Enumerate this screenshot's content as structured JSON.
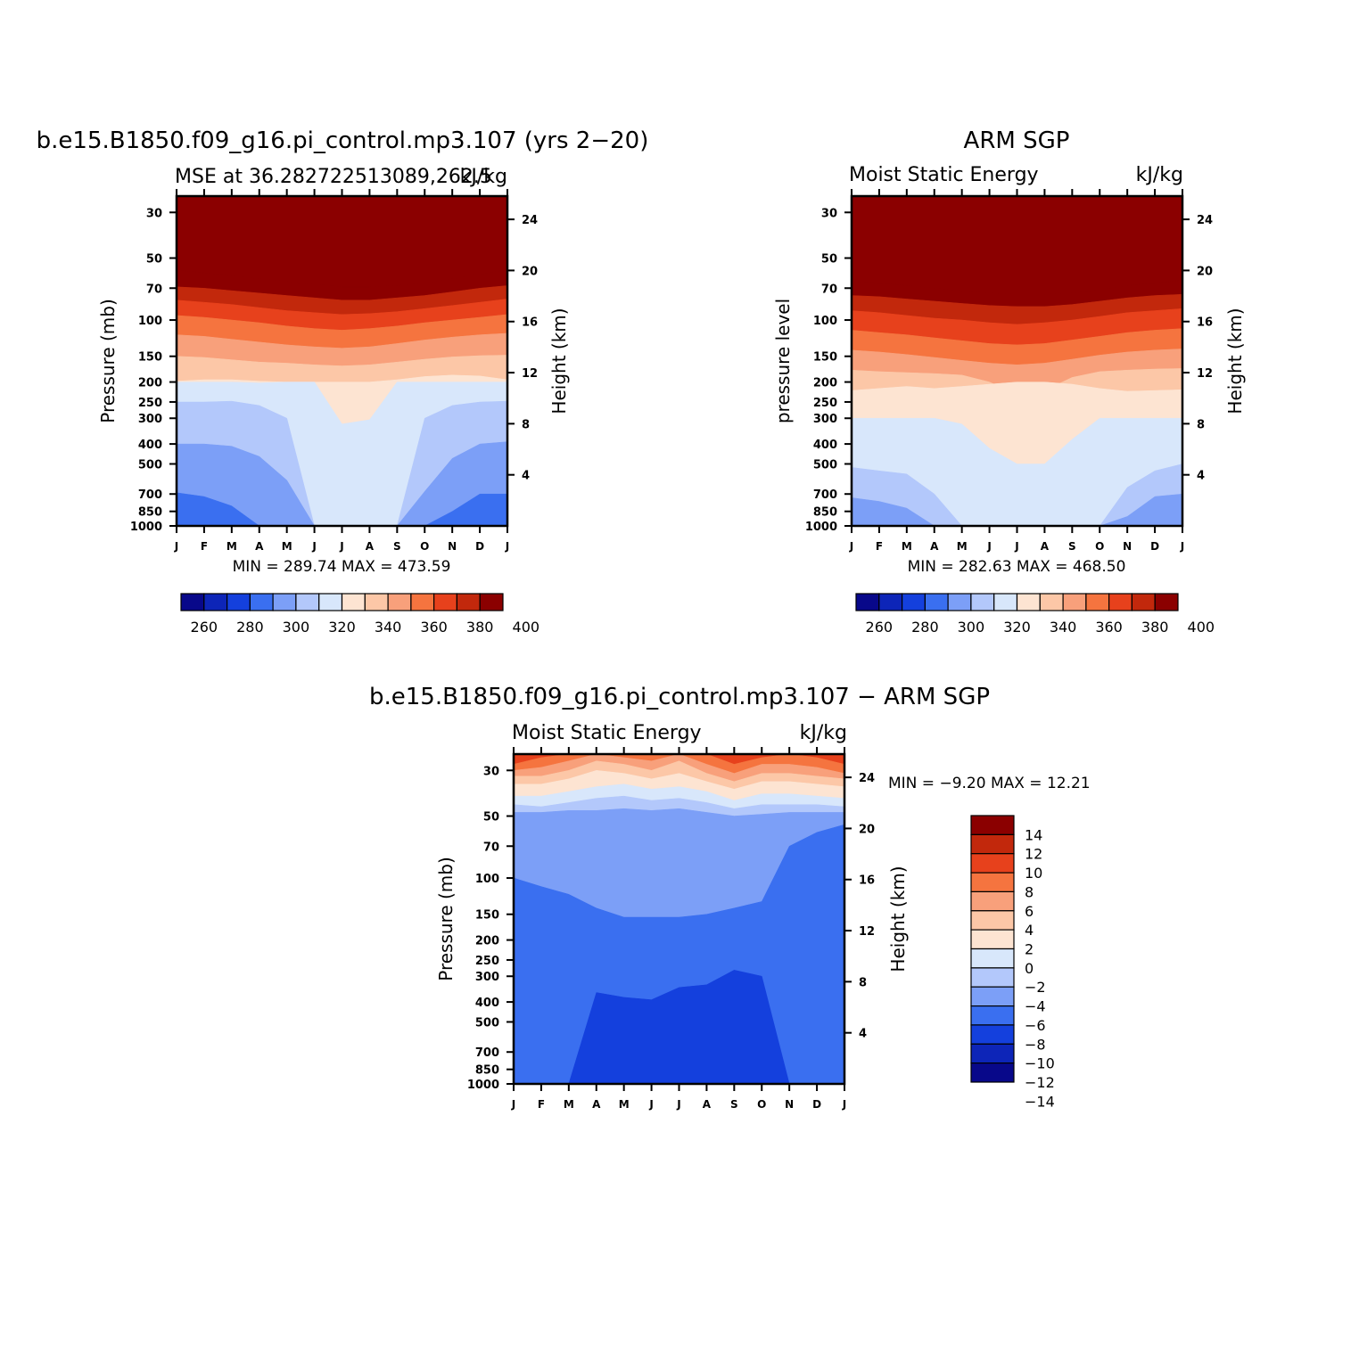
{
  "panels": [
    {
      "id": "model",
      "title": "b.e15.B1850.f09_g16.pi_control.mp3.107 (yrs 2−20)",
      "subtitle_left": "MSE at 36.282722513089,262.5",
      "subtitle_right": "kJ/kg",
      "ylabel_left": "Pressure (mb)",
      "ylabel_right": "Height (km)",
      "minmax": "MIN =  289.74  MAX =  473.59"
    },
    {
      "id": "obs",
      "title": "ARM SGP",
      "subtitle_left": "Moist Static Energy",
      "subtitle_right": "kJ/kg",
      "ylabel_left": "pressure level",
      "ylabel_right": "Height (km)",
      "minmax": "MIN =  282.63  MAX =  468.50"
    },
    {
      "id": "diff",
      "title": "b.e15.B1850.f09_g16.pi_control.mp3.107 − ARM SGP",
      "subtitle_left": "Moist Static Energy",
      "subtitle_right": "kJ/kg",
      "ylabel_left": "Pressure (mb)",
      "ylabel_right": "Height (km)",
      "minmax": "MIN =   −9.20  MAX =   12.21"
    }
  ],
  "colorbars": {
    "abs_labels": [
      "260",
      "280",
      "300",
      "320",
      "340",
      "360",
      "380",
      "400"
    ],
    "abs_colors": [
      "#08088a",
      "#0d25b8",
      "#1440dd",
      "#3a6ff0",
      "#7c9ff7",
      "#b3c8fb",
      "#d8e7fb",
      "#fde4d2",
      "#fcc7a7",
      "#f8a07b",
      "#f5743f",
      "#e7411c",
      "#c2280c",
      "#8b0000"
    ],
    "diff_labels": [
      "14",
      "12",
      "10",
      "8",
      "6",
      "4",
      "2",
      "0",
      "−2",
      "−4",
      "−6",
      "−8",
      "−10",
      "−12",
      "−14"
    ],
    "diff_colors": [
      "#8b0000",
      "#c2280c",
      "#e7411c",
      "#f5743f",
      "#f8a07b",
      "#fcc7a7",
      "#fde4d2",
      "#d8e7fb",
      "#b3c8fb",
      "#7c9ff7",
      "#3a6ff0",
      "#1440dd",
      "#0d25b8",
      "#08088a"
    ]
  },
  "chart_data": [
    {
      "type": "heatmap",
      "title": "b.e15.B1850.f09_g16.pi_control.mp3.107 (yrs 2−20)",
      "subtitle": "MSE at 36.282722513089,262.5",
      "units": "kJ/kg",
      "x_ticks": [
        "J",
        "F",
        "M",
        "A",
        "M",
        "J",
        "J",
        "A",
        "S",
        "O",
        "N",
        "D",
        "J"
      ],
      "y_left_ticks": [
        "30",
        "50",
        "70",
        "100",
        "150",
        "200",
        "250",
        "300",
        "400",
        "500",
        "700",
        "850",
        "1000"
      ],
      "y_right_ticks": [
        "24",
        "20",
        "16",
        "12",
        "8",
        "4"
      ],
      "ylabel_left": "Pressure (mb)",
      "ylabel_right": "Height (km)",
      "ylim_pressure_mb": [
        1000,
        25
      ],
      "min": 289.74,
      "max": 473.59,
      "color_levels": [
        260,
        270,
        280,
        290,
        300,
        310,
        320,
        330,
        340,
        350,
        360,
        370,
        380,
        390,
        400
      ],
      "boundaries": [
        {
          "above_level": 400,
          "pressure_mb": [
            57,
            59,
            61,
            63,
            65,
            67,
            69,
            69,
            68,
            66,
            63,
            60,
            57
          ]
        },
        {
          "above_level": 390,
          "pressure_mb": [
            69,
            70,
            72,
            74,
            76,
            78,
            80,
            80,
            78,
            76,
            73,
            70,
            68
          ]
        },
        {
          "above_level": 380,
          "pressure_mb": [
            80,
            82,
            84,
            87,
            90,
            92,
            94,
            93,
            91,
            88,
            85,
            82,
            79
          ]
        },
        {
          "above_level": 370,
          "pressure_mb": [
            95,
            97,
            100,
            103,
            107,
            110,
            112,
            110,
            107,
            103,
            100,
            97,
            94
          ]
        },
        {
          "above_level": 360,
          "pressure_mb": [
            118,
            120,
            124,
            128,
            132,
            135,
            137,
            135,
            130,
            125,
            121,
            118,
            116
          ]
        },
        {
          "above_level": 350,
          "pressure_mb": [
            150,
            152,
            156,
            160,
            162,
            165,
            167,
            165,
            160,
            155,
            151,
            149,
            148
          ]
        },
        {
          "above_level": 340,
          "pressure_mb": [
            198,
            195,
            195,
            198,
            200,
            200,
            200,
            200,
            195,
            188,
            185,
            187,
            195
          ]
        },
        {
          "above_level": 330,
          "pressure_mb": [
            200,
            200,
            200,
            202,
            200,
            200,
            320,
            305,
            200,
            200,
            200,
            200,
            200
          ]
        },
        {
          "above_level": 320,
          "pressure_mb": [
            250,
            250,
            248,
            260,
            300,
            1000,
            1000,
            1000,
            1000,
            300,
            260,
            250,
            248
          ]
        },
        {
          "above_level": 310,
          "pressure_mb": [
            400,
            400,
            410,
            460,
            600,
            1000,
            1000,
            1000,
            1000,
            680,
            470,
            400,
            390
          ]
        },
        {
          "above_level": 300,
          "pressure_mb": [
            690,
            720,
            800,
            1000,
            1000,
            1000,
            1000,
            1000,
            1000,
            1000,
            850,
            700,
            700
          ]
        }
      ]
    },
    {
      "type": "heatmap",
      "title": "ARM SGP",
      "subtitle": "Moist Static Energy",
      "units": "kJ/kg",
      "x_ticks": [
        "J",
        "F",
        "M",
        "A",
        "M",
        "J",
        "J",
        "A",
        "S",
        "O",
        "N",
        "D",
        "J"
      ],
      "y_left_ticks": [
        "30",
        "50",
        "70",
        "100",
        "150",
        "200",
        "250",
        "300",
        "400",
        "500",
        "700",
        "850",
        "1000"
      ],
      "y_right_ticks": [
        "24",
        "20",
        "16",
        "12",
        "8",
        "4"
      ],
      "ylabel_left": "pressure level",
      "ylabel_right": "Height (km)",
      "ylim_pressure_mb": [
        1000,
        25
      ],
      "min": 282.63,
      "max": 468.5,
      "color_levels": [
        260,
        270,
        280,
        290,
        300,
        310,
        320,
        330,
        340,
        350,
        360,
        370,
        380,
        390,
        400
      ],
      "boundaries": [
        {
          "above_level": 400,
          "pressure_mb": [
            65,
            66,
            68,
            70,
            72,
            74,
            75,
            75,
            74,
            71,
            68,
            66,
            64
          ]
        },
        {
          "above_level": 390,
          "pressure_mb": [
            76,
            77,
            79,
            81,
            83,
            85,
            86,
            86,
            84,
            81,
            78,
            76,
            75
          ]
        },
        {
          "above_level": 380,
          "pressure_mb": [
            90,
            92,
            95,
            98,
            100,
            103,
            105,
            103,
            100,
            96,
            92,
            90,
            88
          ]
        },
        {
          "above_level": 370,
          "pressure_mb": [
            112,
            115,
            118,
            122,
            126,
            130,
            132,
            130,
            125,
            120,
            115,
            112,
            110
          ]
        },
        {
          "above_level": 360,
          "pressure_mb": [
            140,
            143,
            147,
            152,
            157,
            162,
            165,
            162,
            155,
            148,
            143,
            140,
            138
          ]
        },
        {
          "above_level": 350,
          "pressure_mb": [
            175,
            178,
            180,
            182,
            185,
            200,
            230,
            220,
            190,
            178,
            175,
            173,
            172
          ]
        },
        {
          "above_level": 340,
          "pressure_mb": [
            220,
            215,
            210,
            215,
            210,
            205,
            200,
            200,
            205,
            215,
            222,
            220,
            218
          ]
        },
        {
          "above_level": 330,
          "pressure_mb": [
            300,
            300,
            300,
            300,
            320,
            420,
            500,
            500,
            380,
            300,
            300,
            300,
            300
          ]
        },
        {
          "above_level": 320,
          "pressure_mb": [
            520,
            540,
            560,
            700,
            1000,
            1000,
            1000,
            1000,
            1000,
            1000,
            650,
            540,
            500
          ]
        },
        {
          "above_level": 310,
          "pressure_mb": [
            730,
            760,
            820,
            1000,
            1000,
            1000,
            1000,
            1000,
            1000,
            1000,
            900,
            720,
            700
          ]
        }
      ]
    },
    {
      "type": "heatmap",
      "title": "b.e15.B1850.f09_g16.pi_control.mp3.107 − ARM SGP",
      "subtitle": "Moist Static Energy",
      "units": "kJ/kg",
      "x_ticks": [
        "J",
        "F",
        "M",
        "A",
        "M",
        "J",
        "J",
        "A",
        "S",
        "O",
        "N",
        "D",
        "J"
      ],
      "y_left_ticks": [
        "30",
        "50",
        "70",
        "100",
        "150",
        "200",
        "250",
        "300",
        "400",
        "500",
        "700",
        "850",
        "1000"
      ],
      "y_right_ticks": [
        "24",
        "20",
        "16",
        "12",
        "8",
        "4"
      ],
      "ylabel_left": "Pressure (mb)",
      "ylabel_right": "Height (km)",
      "ylim_pressure_mb": [
        1000,
        25
      ],
      "min": -9.2,
      "max": 12.21,
      "color_levels": [
        -14,
        -12,
        -10,
        -8,
        -6,
        -4,
        -2,
        0,
        2,
        4,
        6,
        8,
        10,
        12,
        14
      ],
      "boundaries": [
        {
          "above_level": 8,
          "pressure_mb": [
            28,
            26,
            25,
            25,
            25,
            25,
            25,
            25,
            28,
            26,
            25,
            26,
            28
          ]
        },
        {
          "above_level": 6,
          "pressure_mb": [
            30,
            29,
            27,
            25,
            26,
            27,
            25,
            28,
            31,
            28,
            28,
            29,
            31
          ]
        },
        {
          "above_level": 4,
          "pressure_mb": [
            32,
            32,
            30,
            27,
            28,
            30,
            27,
            31,
            34,
            31,
            31,
            32,
            33
          ]
        },
        {
          "above_level": 2,
          "pressure_mb": [
            35,
            35,
            33,
            30,
            31,
            33,
            31,
            34,
            37,
            34,
            34,
            35,
            36
          ]
        },
        {
          "above_level": 0,
          "pressure_mb": [
            40,
            40,
            38,
            36,
            35,
            37,
            36,
            38,
            42,
            39,
            39,
            40,
            41
          ]
        },
        {
          "above_level": -2,
          "pressure_mb": [
            44,
            45,
            43,
            41,
            40,
            42,
            41,
            43,
            46,
            44,
            44,
            44,
            45
          ]
        },
        {
          "above_level": -4,
          "pressure_mb": [
            48,
            48,
            47,
            47,
            46,
            47,
            46,
            48,
            50,
            49,
            48,
            48,
            48
          ]
        },
        {
          "above_level": -6,
          "pressure_mb": [
            100,
            110,
            120,
            140,
            155,
            155,
            155,
            150,
            140,
            130,
            70,
            60,
            55
          ]
        },
        {
          "above_level": -8,
          "pressure_mb": [
            1000,
            1000,
            1000,
            360,
            380,
            390,
            340,
            330,
            280,
            300,
            1000,
            1000,
            1000
          ]
        }
      ]
    }
  ]
}
